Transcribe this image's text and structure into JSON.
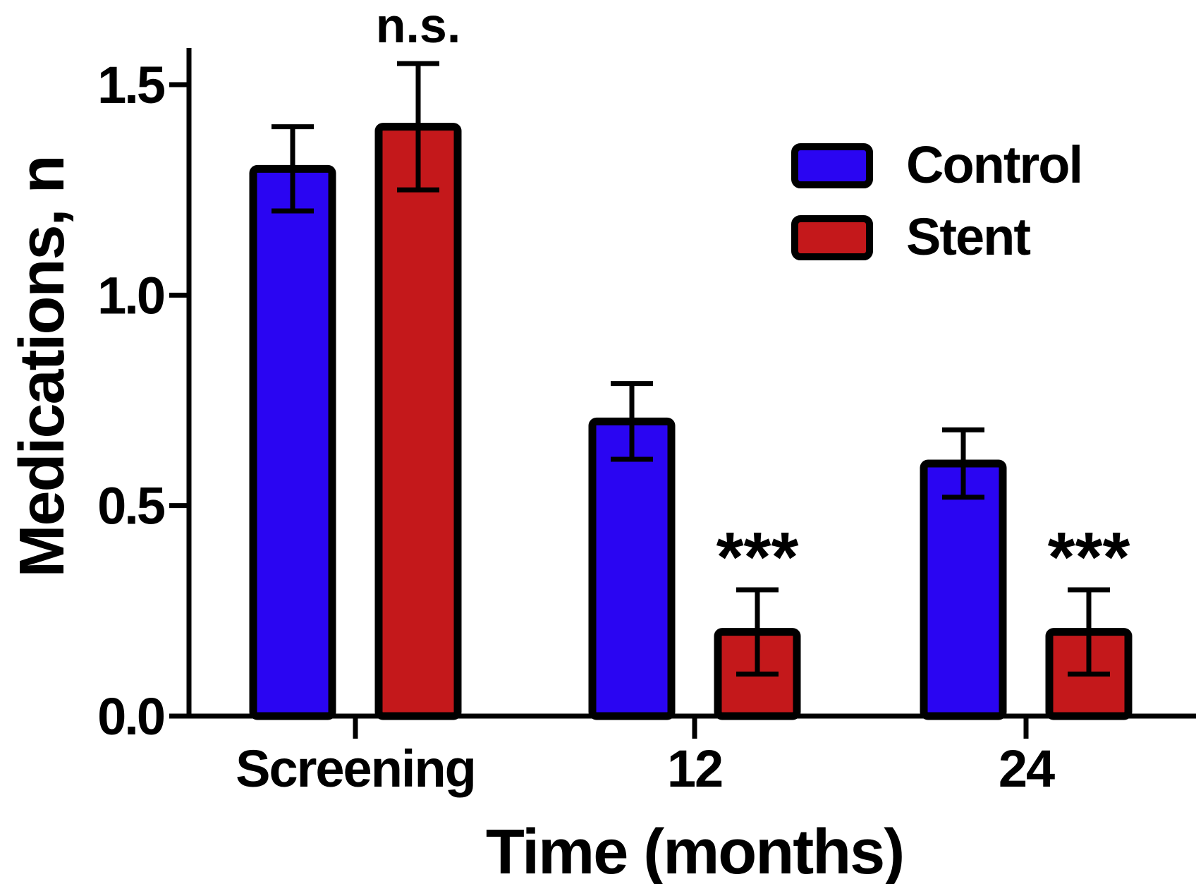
{
  "chart_data": {
    "type": "bar",
    "categories": [
      "Screening",
      "12",
      "24"
    ],
    "series": [
      {
        "name": "Control",
        "color": "#2a05f2",
        "values": [
          1.3,
          0.7,
          0.6
        ],
        "errors": [
          0.1,
          0.09,
          0.08
        ]
      },
      {
        "name": "Stent",
        "color": "#c4181b",
        "values": [
          1.4,
          0.2,
          0.2
        ],
        "errors": [
          0.15,
          0.1,
          0.1
        ]
      }
    ],
    "annotations": [
      "n.s.",
      "***",
      "***"
    ],
    "xlabel": "Time (months)",
    "ylabel": "Medications, n",
    "ylim": [
      0,
      1.5
    ],
    "yticks": [
      "0.0",
      "0.5",
      "1.0",
      "1.5"
    ],
    "legend_position": "top-right",
    "grid": false
  }
}
